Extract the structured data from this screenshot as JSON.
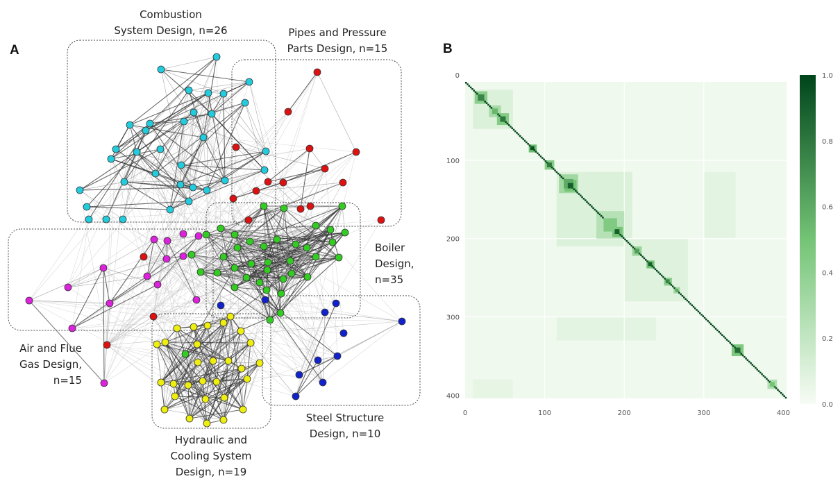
{
  "panels": {
    "a_label": "A",
    "b_label": "B"
  },
  "colors": {
    "combustion": "#22ccdd",
    "pipes": "#dd1111",
    "air_flue": "#dd22dd",
    "boiler": "#33cc22",
    "steel": "#1122cc",
    "hydraulic": "#eeee11",
    "heat_low": "#f7fcf5",
    "heat_high": "#00441b"
  },
  "clusters": [
    {
      "key": "combustion",
      "lines": [
        "Combustion",
        "System Design, n=26"
      ]
    },
    {
      "key": "pipes",
      "lines": [
        "Pipes and Pressure",
        "Parts Design, n=15"
      ]
    },
    {
      "key": "boiler",
      "lines": [
        "Boiler",
        "Design,",
        "n=35"
      ]
    },
    {
      "key": "air_flue",
      "lines": [
        "Air and Flue",
        "Gas Design,",
        "n=15"
      ]
    },
    {
      "key": "steel",
      "lines": [
        "Steel Structure",
        "Design, n=10"
      ]
    },
    {
      "key": "hydraulic",
      "lines": [
        "Hydraulic and",
        "Cooling System",
        "Design, n=19"
      ]
    }
  ],
  "chart_data": [
    {
      "type": "network",
      "title": "",
      "groups": [
        {
          "name": "Combustion System Design",
          "n": 26
        },
        {
          "name": "Pipes and Pressure Parts Design",
          "n": 15
        },
        {
          "name": "Boiler Design",
          "n": 35
        },
        {
          "name": "Air and Flue Gas Design",
          "n": 15
        },
        {
          "name": "Steel Structure Design",
          "n": 10
        },
        {
          "name": "Hydraulic and Cooling System Design",
          "n": 19
        }
      ]
    },
    {
      "type": "heatmap",
      "title": "",
      "n": 404,
      "xlim": [
        0,
        404
      ],
      "ylim": [
        0,
        404
      ],
      "x_ticks": [
        "0",
        "100",
        "200",
        "300",
        "400"
      ],
      "y_ticks": [
        "0",
        "100",
        "200",
        "300",
        "400"
      ],
      "colorbar_range": [
        0.0,
        1.0
      ],
      "colorbar_ticks": [
        "0.0",
        "0.2",
        "0.4",
        "0.6",
        "0.8",
        "1.0"
      ],
      "colormap": "Greens",
      "blocks": [
        {
          "start": 12,
          "end": 28,
          "value": 0.75
        },
        {
          "start": 30,
          "end": 45,
          "value": 0.55
        },
        {
          "start": 40,
          "end": 55,
          "value": 0.8
        },
        {
          "start": 80,
          "end": 90,
          "value": 0.95
        },
        {
          "start": 100,
          "end": 112,
          "value": 0.8
        },
        {
          "start": 118,
          "end": 142,
          "value": 0.6
        },
        {
          "start": 125,
          "end": 140,
          "value": 0.9
        },
        {
          "start": 165,
          "end": 200,
          "value": 0.45
        },
        {
          "start": 185,
          "end": 198,
          "value": 0.9
        },
        {
          "start": 210,
          "end": 222,
          "value": 0.65
        },
        {
          "start": 228,
          "end": 238,
          "value": 0.9
        },
        {
          "start": 250,
          "end": 260,
          "value": 0.75
        },
        {
          "start": 262,
          "end": 270,
          "value": 0.6
        },
        {
          "start": 335,
          "end": 350,
          "value": 0.85
        },
        {
          "start": 380,
          "end": 392,
          "value": 0.5
        }
      ],
      "off_diagonal": [
        {
          "x": [
            10,
            60
          ],
          "y": [
            10,
            60
          ],
          "value": 0.12
        },
        {
          "x": [
            115,
            210
          ],
          "y": [
            115,
            210
          ],
          "value": 0.12
        },
        {
          "x": [
            200,
            280
          ],
          "y": [
            200,
            280
          ],
          "value": 0.1
        },
        {
          "x": [
            115,
            240
          ],
          "y": [
            300,
            330
          ],
          "value": 0.08
        },
        {
          "x": [
            300,
            340
          ],
          "y": [
            115,
            200
          ],
          "value": 0.08
        },
        {
          "x": [
            10,
            60
          ],
          "y": [
            380,
            404
          ],
          "value": 0.07
        }
      ]
    }
  ]
}
